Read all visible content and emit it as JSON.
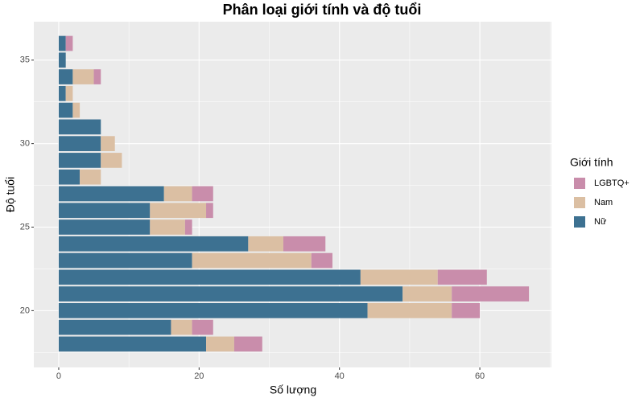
{
  "chart_data": {
    "type": "stacked_barh",
    "title": "Phân loại giới tính và độ tuổi",
    "x_label": "Số lượng",
    "y_label": "Độ tuổi",
    "legend_title": "Giới tính",
    "legend_position": "right",
    "y": [
      18,
      19,
      20,
      21,
      22,
      23,
      24,
      25,
      26,
      27,
      28,
      29,
      30,
      31,
      32,
      33,
      34,
      35,
      36
    ],
    "series": [
      {
        "name": "Nữ",
        "color": "#3d7191",
        "values": [
          21,
          16,
          44,
          49,
          43,
          19,
          27,
          13,
          13,
          15,
          3,
          6,
          6,
          6,
          2,
          1,
          2,
          1,
          1
        ]
      },
      {
        "name": "Nam",
        "color": "#dbbfa3",
        "values": [
          4,
          3,
          12,
          7,
          11,
          17,
          5,
          5,
          8,
          4,
          3,
          3,
          2,
          0,
          1,
          1,
          3,
          0,
          0
        ]
      },
      {
        "name": "LGBTQ+",
        "color": "#c98dab",
        "values": [
          4,
          3,
          4,
          11,
          7,
          3,
          6,
          1,
          1,
          3,
          0,
          0,
          0,
          0,
          0,
          0,
          1,
          0,
          1
        ]
      }
    ],
    "xlim": [
      -3.55,
      70.2
    ],
    "xticks": [
      0,
      20,
      40,
      60
    ],
    "ylim": [
      16.6,
      37.3
    ],
    "yticks": [
      20,
      25,
      30,
      35
    ],
    "grid": true
  }
}
